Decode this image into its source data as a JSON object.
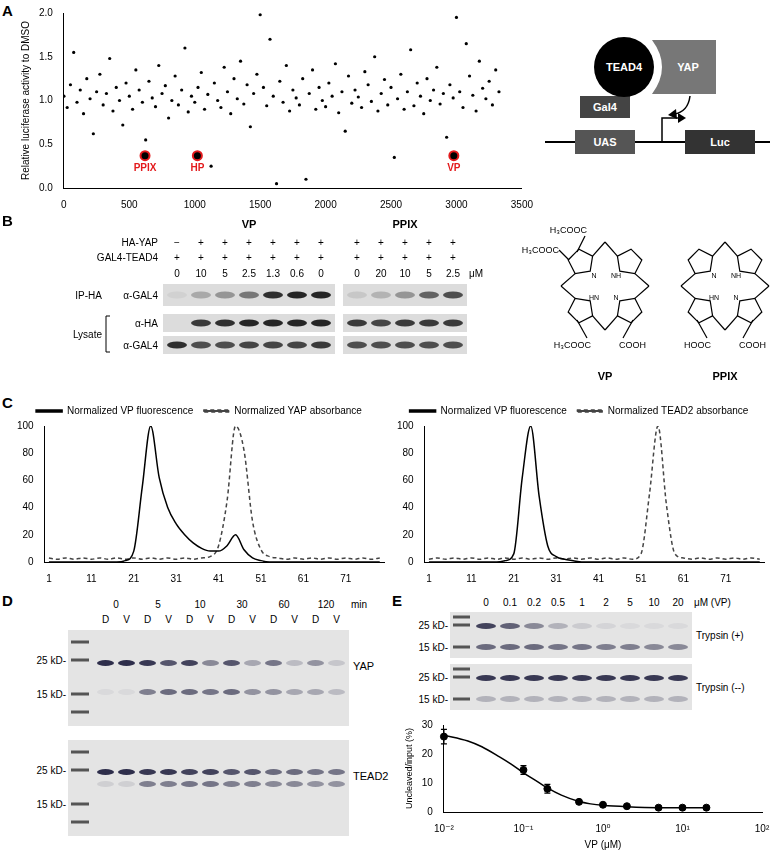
{
  "chart_data": [
    {
      "panel": "A",
      "type": "scatter",
      "y_label": "Relative luciferase activity to DMSO",
      "x": [
        0,
        25,
        50,
        75,
        100,
        125,
        150,
        175,
        200,
        225,
        250,
        275,
        300,
        325,
        350,
        375,
        400,
        425,
        450,
        475,
        500,
        525,
        550,
        575,
        600,
        625,
        650,
        675,
        700,
        725,
        750,
        775,
        800,
        825,
        850,
        875,
        900,
        925,
        950,
        975,
        1000,
        1025,
        1050,
        1075,
        1100,
        1125,
        1150,
        1175,
        1200,
        1225,
        1250,
        1275,
        1300,
        1325,
        1350,
        1375,
        1400,
        1425,
        1450,
        1475,
        1500,
        1525,
        1550,
        1575,
        1600,
        1625,
        1650,
        1675,
        1700,
        1725,
        1750,
        1775,
        1800,
        1825,
        1850,
        1875,
        1900,
        1925,
        1950,
        1975,
        2000,
        2025,
        2050,
        2075,
        2100,
        2125,
        2150,
        2175,
        2200,
        2225,
        2250,
        2275,
        2300,
        2325,
        2350,
        2375,
        2400,
        2425,
        2450,
        2475,
        2500,
        2525,
        2550,
        2575,
        2600,
        2625,
        2650,
        2675,
        2700,
        2725,
        2750,
        2775,
        2800,
        2825,
        2850,
        2875,
        2900,
        2925,
        2950,
        2975,
        3000,
        3025,
        3050,
        3075,
        3100,
        3125,
        3150,
        3175,
        3200,
        3225,
        3250,
        3275,
        3300,
        3325
      ],
      "values": [
        1.05,
        0.92,
        1.18,
        1.55,
        0.98,
        1.12,
        0.85,
        1.25,
        1.02,
        0.62,
        1.1,
        1.3,
        0.95,
        1.08,
        1.48,
        0.88,
        1.15,
        1.0,
        0.72,
        1.2,
        1.05,
        0.9,
        1.35,
        1.12,
        0.98,
        0.55,
        1.22,
        1.03,
        0.93,
        1.4,
        1.08,
        1.17,
        0.8,
        1.0,
        1.28,
        0.95,
        1.12,
        1.6,
        0.87,
        1.05,
        0.98,
        1.15,
        1.32,
        0.9,
        1.07,
        0.25,
        1.2,
        1.0,
        0.92,
        1.38,
        1.1,
        0.85,
        1.25,
        1.02,
        1.45,
        0.96,
        1.18,
        0.7,
        1.08,
        1.3,
        1.98,
        1.15,
        0.94,
        1.7,
        1.05,
        0.05,
        1.22,
        0.98,
        1.4,
        0.88,
        1.12,
        1.03,
        0.95,
        1.25,
        0.1,
        1.08,
        1.35,
        0.9,
        1.15,
        1.0,
        0.93,
        1.2,
        1.05,
        1.42,
        0.86,
        1.1,
        0.65,
        1.28,
        0.97,
        1.12,
        1.04,
        0.92,
        1.33,
        1.18,
        0.99,
        1.5,
        0.88,
        1.08,
        1.24,
        0.95,
        1.15,
        0.35,
        1.02,
        1.3,
        0.9,
        1.1,
        1.58,
        0.94,
        1.2,
        1.05,
        0.85,
        1.25,
        1.0,
        1.12,
        1.38,
        0.96,
        1.08,
        0.58,
        1.18,
        1.03,
        1.95,
        1.1,
        0.92,
        1.65,
        1.28,
        1.06,
        0.88,
        1.45,
        1.14,
        1.02,
        1.22,
        0.95,
        1.35,
        1.1
      ],
      "color": "#000000",
      "marker": "circle",
      "annotations": [
        {
          "text": "PPIX",
          "x": 620,
          "y": 0.37,
          "color": "#e31a1c"
        },
        {
          "text": "HP",
          "x": 1020,
          "y": 0.37,
          "color": "#e31a1c"
        },
        {
          "text": "VP",
          "x": 2980,
          "y": 0.37,
          "color": "#e31a1c"
        }
      ],
      "xlim": [
        0,
        3500
      ],
      "xticks": [
        0,
        500,
        1000,
        1500,
        2000,
        2500,
        3000,
        3500
      ],
      "ylim": [
        0,
        2
      ],
      "yticks": [
        {
          "value": 0,
          "label": "0.0"
        },
        {
          "value": 0.5,
          "label": "0.5"
        },
        {
          "value": 1,
          "label": "1.0"
        },
        {
          "value": 1.5,
          "label": "1.5"
        },
        {
          "value": 2,
          "label": "2.0"
        }
      ],
      "grid": false
    },
    {
      "panel": "C",
      "type": "line",
      "x": [
        1,
        3,
        5,
        7,
        9,
        11,
        13,
        15,
        17,
        19,
        21,
        23,
        25,
        27,
        29,
        31,
        33,
        35,
        37,
        39,
        41,
        43,
        45,
        47,
        49,
        51,
        53,
        55,
        57,
        59,
        61,
        63,
        65,
        67,
        69,
        71,
        73,
        75,
        77,
        79
      ],
      "series": [
        {
          "name": "Normalized VP fluorescence",
          "color": "#000000",
          "line_style": "solid",
          "values": [
            0,
            0,
            0,
            0,
            0,
            0,
            0,
            0,
            0,
            1,
            8,
            55,
            100,
            62,
            40,
            28,
            20,
            14,
            10,
            8,
            8,
            12,
            20,
            9,
            3,
            1,
            0,
            0,
            0,
            0,
            0,
            0,
            0,
            0,
            0,
            0,
            0,
            0,
            0,
            0
          ]
        },
        {
          "name": "Normalized YAP absorbance",
          "color": "#444444",
          "line_style": "dashed",
          "values": [
            3,
            2,
            3,
            2,
            3,
            2,
            3,
            2,
            3,
            2,
            3,
            2,
            3,
            2,
            3,
            2,
            3,
            2,
            3,
            4,
            12,
            45,
            100,
            82,
            30,
            9,
            4,
            3,
            2,
            3,
            2,
            3,
            2,
            3,
            2,
            3,
            2,
            3,
            2,
            3
          ]
        }
      ],
      "xlim": [
        0,
        80
      ],
      "xticks": [
        1,
        11,
        21,
        31,
        41,
        51,
        61,
        71
      ],
      "ylim": [
        0,
        100
      ],
      "yticks": [
        0,
        20,
        40,
        60,
        80,
        100
      ],
      "grid": false,
      "legend": "top"
    },
    {
      "type": "line",
      "x": [
        1,
        3,
        5,
        7,
        9,
        11,
        13,
        15,
        17,
        19,
        21,
        23,
        25,
        27,
        29,
        31,
        33,
        35,
        37,
        39,
        41,
        43,
        45,
        47,
        49,
        51,
        53,
        55,
        57,
        59,
        61,
        63,
        65,
        67,
        69,
        71,
        73,
        75,
        77,
        79
      ],
      "series": [
        {
          "name": "Normalized VP fluorescence",
          "color": "#000000",
          "line_style": "solid",
          "values": [
            0,
            0,
            0,
            0,
            0,
            0,
            0,
            0,
            0,
            1,
            6,
            62,
            100,
            48,
            12,
            4,
            2,
            1,
            0,
            0,
            0,
            0,
            0,
            0,
            0,
            0,
            0,
            0,
            0,
            0,
            0,
            0,
            0,
            0,
            0,
            0,
            0,
            0,
            0,
            0
          ]
        },
        {
          "name": "Normalized TEAD2 absorbance",
          "color": "#444444",
          "line_style": "dashed",
          "values": [
            2,
            3,
            2,
            3,
            2,
            3,
            2,
            3,
            2,
            3,
            2,
            3,
            2,
            3,
            2,
            3,
            2,
            3,
            2,
            3,
            2,
            3,
            2,
            3,
            2,
            6,
            50,
            100,
            42,
            6,
            3,
            2,
            3,
            2,
            3,
            2,
            3,
            2,
            3,
            2
          ]
        }
      ],
      "xlim": [
        0,
        80
      ],
      "xticks": [
        1,
        11,
        21,
        31,
        41,
        51,
        61,
        71
      ],
      "ylim": [
        0,
        100
      ],
      "yticks": [
        0,
        20,
        40,
        60,
        80,
        100
      ],
      "grid": false,
      "legend": "top"
    },
    {
      "type": "scatter",
      "log": "x",
      "x_label": "VP (μM)",
      "y_label": "Uncleaved/input (%)",
      "x": [
        0.01,
        0.1,
        0.2,
        0.5,
        1,
        2,
        5,
        10,
        20
      ],
      "values": [
        26,
        14.5,
        8,
        3.5,
        2.5,
        2,
        1.5,
        1.5,
        1.5
      ],
      "errors": [
        2.5,
        1.5,
        1.5,
        0.5,
        0.3,
        0.3,
        0.2,
        0.2,
        0.2
      ],
      "fit": {
        "x": [
          0.01,
          0.02,
          0.03,
          0.05,
          0.07,
          0.1,
          0.15,
          0.2,
          0.3,
          0.5,
          0.7,
          1,
          2,
          5,
          10,
          20
        ],
        "values": [
          26.5,
          24.5,
          22.5,
          19,
          16.5,
          13.5,
          10.5,
          8.3,
          5.8,
          3.6,
          2.8,
          2.3,
          1.8,
          1.5,
          1.5,
          1.5
        ]
      },
      "color": "#000000",
      "marker": "circle",
      "xlim": [
        0.01,
        100
      ],
      "xticks": [
        {
          "value": 0.01,
          "label": "10⁻²"
        },
        {
          "value": 0.1,
          "label": "10⁻¹"
        },
        {
          "value": 1,
          "label": "10⁰"
        },
        {
          "value": 10,
          "label": "10¹"
        },
        {
          "value": 100,
          "label": "10²"
        }
      ],
      "ylim": [
        0,
        30
      ],
      "yticks": [
        0,
        10,
        20,
        30
      ],
      "grid": false
    }
  ],
  "figure": {
    "A": {
      "diagram": {
        "protein": "TEAD4",
        "coactivator": "YAP",
        "dbd": "Gal4",
        "element": "UAS",
        "reporter": "Luc"
      }
    },
    "B": {
      "panel": "B",
      "row_labels": [
        "HA-YAP",
        "GAL4-TEAD4"
      ],
      "unit": "μM",
      "groups": [
        {
          "label": "IP-HA",
          "rows": [
            "α-GAL4"
          ]
        },
        {
          "label": "Lysate",
          "rows": [
            "α-HA",
            "α-GAL4"
          ]
        }
      ],
      "blots": [
        {
          "title": "VP",
          "marks": [
            [
              "−",
              "+",
              "+",
              "+",
              "+",
              "+",
              "+"
            ],
            [
              "+",
              "+",
              "+",
              "+",
              "+",
              "+",
              "+"
            ]
          ],
          "concentrations": [
            0,
            10,
            5,
            2.5,
            1.3,
            0.6,
            0
          ],
          "bands": [
            [
              0.05,
              0.25,
              0.35,
              0.5,
              0.85,
              0.9,
              0.9
            ],
            [
              0,
              0.8,
              0.85,
              0.9,
              0.9,
              0.9,
              0.9
            ],
            [
              0.85,
              0.7,
              0.7,
              0.75,
              0.75,
              0.75,
              0.8
            ]
          ]
        },
        {
          "title": "PPIX",
          "marks": [
            [
              "+",
              "+",
              "+",
              "+",
              "+"
            ],
            [
              "+",
              "+",
              "+",
              "+",
              "+"
            ]
          ],
          "concentrations": [
            0,
            20,
            10,
            5,
            2.5
          ],
          "bands": [
            [
              0.1,
              0.2,
              0.35,
              0.6,
              0.7
            ],
            [
              0.8,
              0.75,
              0.8,
              0.8,
              0.8
            ],
            [
              0.7,
              0.7,
              0.7,
              0.7,
              0.7
            ]
          ]
        }
      ],
      "structures": [
        {
          "name": "VP",
          "ring": [
            "N",
            "NH",
            "HN",
            "N"
          ],
          "substituents": [
            "H₃COOC",
            "H₃COOC",
            "H₃COOC",
            "COOH"
          ]
        },
        {
          "name": "PPIX",
          "ring": [
            "N",
            "NH",
            "HN",
            "N"
          ],
          "substituents": [
            "HOOC",
            "COOH"
          ]
        }
      ]
    },
    "D": {
      "panel": "D",
      "times": [
        0,
        5,
        10,
        30,
        60,
        120
      ],
      "time_unit": "min",
      "pair": [
        "D",
        "V"
      ],
      "markers": [
        "25 kD-",
        "15 kD-"
      ],
      "gels": [
        {
          "label": "YAP",
          "bands": [
            [
              0.9,
              0.9,
              0.85,
              0.7,
              0.8,
              0.45,
              0.7,
              0.3,
              0.55,
              0.2,
              0.4,
              0.15
            ],
            [
              0.05,
              0.05,
              0.5,
              0.6,
              0.6,
              0.55,
              0.6,
              0.4,
              0.4,
              0.3,
              0.3,
              0.2
            ]
          ]
        },
        {
          "label": "TEAD2",
          "bands": [
            [
              0.9,
              0.9,
              0.85,
              0.85,
              0.8,
              0.8,
              0.7,
              0.7,
              0.6,
              0.6,
              0.55,
              0.55
            ],
            [
              0.1,
              0.1,
              0.5,
              0.5,
              0.55,
              0.55,
              0.5,
              0.5,
              0.45,
              0.45,
              0.4,
              0.4
            ]
          ]
        }
      ]
    },
    "E": {
      "panel": "E",
      "concentrations": [
        0,
        0.1,
        0.2,
        0.5,
        1,
        2,
        5,
        10,
        20
      ],
      "unit": "μM (VP)",
      "markers": [
        "25 kD-",
        "15 kD-"
      ],
      "gels": [
        {
          "label": "Trypsin (+)",
          "bands": [
            [
              0.8,
              0.65,
              0.45,
              0.25,
              0.12,
              0.08,
              0.05,
              0.05,
              0.05
            ],
            [
              0.6,
              0.6,
              0.6,
              0.55,
              0.55,
              0.5,
              0.5,
              0.45,
              0.45
            ]
          ]
        },
        {
          "label": "Trypsin (--)",
          "bands": [
            [
              0.85,
              0.85,
              0.85,
              0.85,
              0.85,
              0.85,
              0.85,
              0.85,
              0.85
            ],
            [
              0.25,
              0.25,
              0.25,
              0.25,
              0.25,
              0.25,
              0.25,
              0.25,
              0.25
            ]
          ]
        }
      ]
    }
  }
}
